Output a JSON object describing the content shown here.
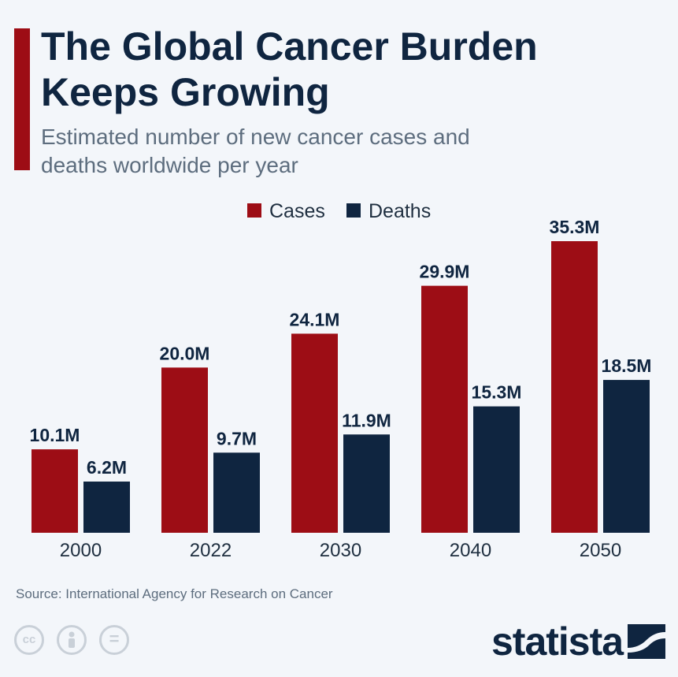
{
  "title": "The Global Cancer Burden Keeps Growing",
  "subtitle": "Estimated number of new cancer cases and deaths worldwide per year",
  "source": "Source: International Agency for Research on Cancer",
  "brand": "statista",
  "colors": {
    "cases": "#9d0d15",
    "deaths": "#0f2540",
    "accent": "#9d0d15"
  },
  "chart_data": {
    "type": "bar",
    "title": "The Global Cancer Burden Keeps Growing",
    "subtitle": "Estimated number of new cancer cases and deaths worldwide per year",
    "categories": [
      "2000",
      "2022",
      "2030",
      "2040",
      "2050"
    ],
    "series": [
      {
        "name": "Cases",
        "values": [
          10.1,
          20.0,
          24.1,
          29.9,
          35.3
        ],
        "labels": [
          "10.1M",
          "20.0M",
          "24.1M",
          "29.9M",
          "35.3M"
        ]
      },
      {
        "name": "Deaths",
        "values": [
          6.2,
          9.7,
          11.9,
          15.3,
          18.5
        ],
        "labels": [
          "6.2M",
          "9.7M",
          "11.9M",
          "15.3M",
          "18.5M"
        ]
      }
    ],
    "unit": "M",
    "ylim": [
      0,
      35.3
    ],
    "grid": false,
    "legend": "top-center"
  }
}
